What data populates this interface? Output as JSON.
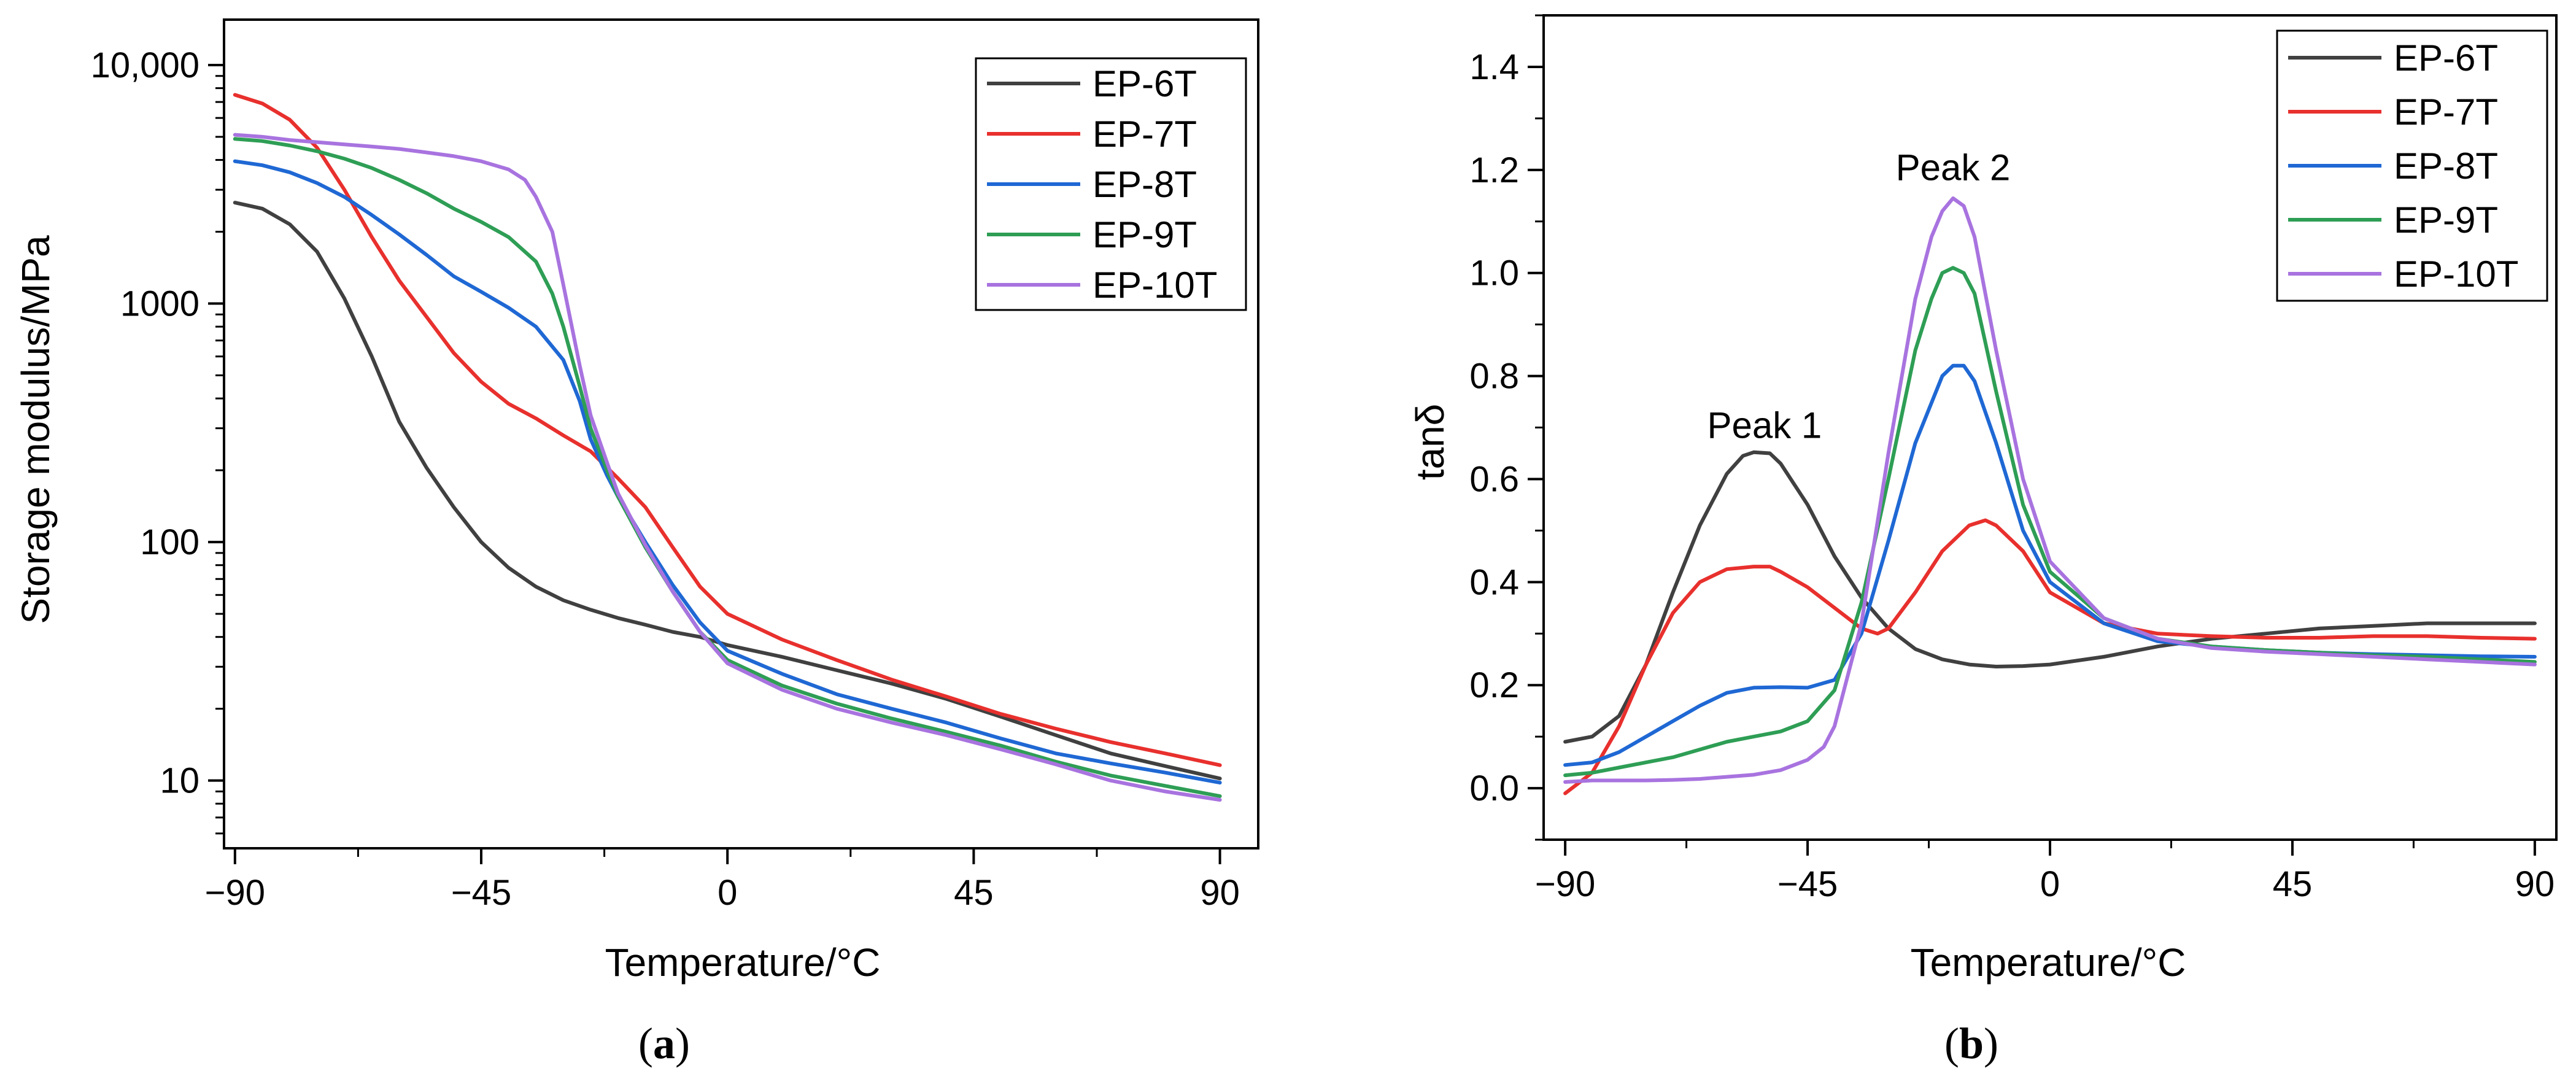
{
  "chart_data": [
    {
      "id": "a",
      "type": "line",
      "caption": "a",
      "xlabel": "Temperature/°C",
      "ylabel": "Storage modulus/MPa",
      "yscale": "log",
      "xlim": [
        -92,
        97
      ],
      "ylim": [
        5.2,
        15500
      ],
      "xticks": [
        -90,
        -45,
        0,
        45,
        90
      ],
      "xtick_labels": [
        "−90",
        "−45",
        "0",
        "45",
        "90"
      ],
      "yticks": [
        10,
        100,
        1000,
        10000
      ],
      "ytick_labels": [
        "10",
        "100",
        "1000",
        "10,000"
      ],
      "legend": "top-right",
      "series": [
        {
          "name": "EP-6T",
          "color": "#404040",
          "x": [
            -90,
            -85,
            -80,
            -75,
            -70,
            -65,
            -60,
            -55,
            -50,
            -45,
            -40,
            -35,
            -30,
            -25,
            -20,
            -15,
            -10,
            -5,
            0,
            10,
            20,
            30,
            40,
            50,
            60,
            70,
            80,
            90
          ],
          "y": [
            2650,
            2500,
            2150,
            1650,
            1050,
            600,
            320,
            205,
            140,
            100,
            78,
            65,
            57,
            52,
            48,
            45,
            42,
            40,
            37,
            33,
            29,
            25.5,
            22,
            18.5,
            15.5,
            13,
            11.5,
            10.2
          ]
        },
        {
          "name": "EP-7T",
          "color": "#e8302d",
          "x": [
            -90,
            -85,
            -80,
            -75,
            -70,
            -65,
            -60,
            -55,
            -50,
            -45,
            -40,
            -35,
            -30,
            -25,
            -20,
            -15,
            -10,
            -5,
            0,
            10,
            20,
            30,
            40,
            50,
            60,
            70,
            80,
            90
          ],
          "y": [
            7500,
            6900,
            5900,
            4500,
            3000,
            1900,
            1250,
            880,
            620,
            470,
            380,
            330,
            280,
            240,
            185,
            140,
            95,
            65,
            50,
            39,
            32,
            26.5,
            22.5,
            19,
            16.5,
            14.5,
            13,
            11.6
          ]
        },
        {
          "name": "EP-8T",
          "color": "#1f68d4",
          "x": [
            -90,
            -85,
            -80,
            -75,
            -70,
            -65,
            -60,
            -55,
            -50,
            -45,
            -40,
            -35,
            -30,
            -27,
            -25,
            -22,
            -20,
            -15,
            -10,
            -5,
            0,
            10,
            20,
            30,
            40,
            50,
            60,
            70,
            80,
            90
          ],
          "y": [
            3950,
            3800,
            3550,
            3200,
            2800,
            2350,
            1950,
            1600,
            1300,
            1120,
            960,
            800,
            580,
            390,
            270,
            190,
            155,
            100,
            66,
            46,
            35,
            28,
            23,
            20,
            17.5,
            15,
            13,
            11.8,
            10.8,
            9.8
          ]
        },
        {
          "name": "EP-9T",
          "color": "#2e9e55",
          "x": [
            -90,
            -85,
            -80,
            -75,
            -70,
            -65,
            -60,
            -55,
            -50,
            -45,
            -40,
            -35,
            -32,
            -30,
            -27,
            -25,
            -22,
            -20,
            -15,
            -10,
            -5,
            0,
            10,
            20,
            30,
            40,
            50,
            60,
            70,
            80,
            90
          ],
          "y": [
            4900,
            4800,
            4600,
            4350,
            4050,
            3700,
            3300,
            2900,
            2500,
            2200,
            1900,
            1500,
            1100,
            800,
            450,
            300,
            200,
            155,
            95,
            62,
            42,
            32,
            25,
            21,
            18.2,
            16,
            14,
            12,
            10.5,
            9.5,
            8.6
          ]
        },
        {
          "name": "EP-10T",
          "color": "#a873df",
          "x": [
            -90,
            -85,
            -80,
            -75,
            -70,
            -65,
            -60,
            -55,
            -50,
            -45,
            -40,
            -37,
            -35,
            -32,
            -30,
            -27,
            -25,
            -22,
            -20,
            -15,
            -10,
            -5,
            0,
            10,
            20,
            30,
            40,
            50,
            60,
            70,
            80,
            90
          ],
          "y": [
            5100,
            5000,
            4850,
            4750,
            4650,
            4550,
            4450,
            4300,
            4150,
            3950,
            3650,
            3300,
            2800,
            2000,
            1200,
            550,
            340,
            215,
            160,
            97,
            62,
            42,
            31,
            24,
            20,
            17.5,
            15.5,
            13.5,
            11.7,
            10,
            9,
            8.3
          ]
        }
      ]
    },
    {
      "id": "b",
      "type": "line",
      "caption": "b",
      "xlabel": "Temperature/°C",
      "ylabel": "tanδ",
      "yscale": "linear",
      "xlim": [
        -94,
        94
      ],
      "ylim": [
        -0.1,
        1.5
      ],
      "xticks": [
        -90,
        -45,
        0,
        45,
        90
      ],
      "xtick_labels": [
        "−90",
        "−45",
        "0",
        "45",
        "90"
      ],
      "yticks": [
        0.0,
        0.2,
        0.4,
        0.6,
        0.8,
        1.0,
        1.2,
        1.4
      ],
      "ytick_labels": [
        "0.0",
        "0.2",
        "0.4",
        "0.6",
        "0.8",
        "1.0",
        "1.2",
        "1.4"
      ],
      "legend": "top-right",
      "annotations": [
        {
          "text": "Peak 1",
          "x": -53,
          "y": 0.68
        },
        {
          "text": "Peak 2",
          "x": -18,
          "y": 1.18
        }
      ],
      "series": [
        {
          "name": "EP-6T",
          "color": "#404040",
          "x": [
            -90,
            -85,
            -80,
            -75,
            -70,
            -65,
            -60,
            -57,
            -55,
            -52,
            -50,
            -45,
            -40,
            -35,
            -30,
            -25,
            -20,
            -15,
            -10,
            -5,
            0,
            10,
            20,
            30,
            40,
            50,
            60,
            70,
            80,
            90
          ],
          "y": [
            0.09,
            0.1,
            0.14,
            0.24,
            0.38,
            0.51,
            0.61,
            0.645,
            0.652,
            0.65,
            0.63,
            0.55,
            0.45,
            0.37,
            0.31,
            0.27,
            0.25,
            0.24,
            0.236,
            0.237,
            0.24,
            0.255,
            0.275,
            0.29,
            0.3,
            0.31,
            0.315,
            0.32,
            0.32,
            0.32
          ]
        },
        {
          "name": "EP-7T",
          "color": "#e8302d",
          "x": [
            -90,
            -85,
            -80,
            -75,
            -70,
            -65,
            -60,
            -55,
            -52,
            -50,
            -45,
            -40,
            -35,
            -32,
            -30,
            -25,
            -20,
            -15,
            -12,
            -10,
            -5,
            0,
            10,
            20,
            30,
            40,
            50,
            60,
            70,
            80,
            90
          ],
          "y": [
            -0.01,
            0.03,
            0.12,
            0.24,
            0.34,
            0.4,
            0.425,
            0.43,
            0.43,
            0.42,
            0.39,
            0.35,
            0.31,
            0.3,
            0.31,
            0.38,
            0.46,
            0.51,
            0.52,
            0.51,
            0.46,
            0.38,
            0.32,
            0.3,
            0.295,
            0.292,
            0.292,
            0.295,
            0.295,
            0.292,
            0.29
          ]
        },
        {
          "name": "EP-8T",
          "color": "#1f68d4",
          "x": [
            -90,
            -85,
            -80,
            -75,
            -70,
            -65,
            -60,
            -55,
            -50,
            -45,
            -40,
            -35,
            -30,
            -25,
            -20,
            -18,
            -16,
            -14,
            -10,
            -5,
            0,
            10,
            20,
            30,
            40,
            50,
            60,
            70,
            80,
            90
          ],
          "y": [
            0.045,
            0.05,
            0.07,
            0.1,
            0.13,
            0.16,
            0.185,
            0.195,
            0.196,
            0.195,
            0.21,
            0.3,
            0.48,
            0.67,
            0.8,
            0.82,
            0.82,
            0.79,
            0.67,
            0.5,
            0.4,
            0.32,
            0.285,
            0.275,
            0.268,
            0.263,
            0.26,
            0.258,
            0.256,
            0.255
          ]
        },
        {
          "name": "EP-9T",
          "color": "#2e9e55",
          "x": [
            -90,
            -85,
            -80,
            -75,
            -70,
            -65,
            -60,
            -55,
            -50,
            -45,
            -40,
            -35,
            -30,
            -25,
            -22,
            -20,
            -18,
            -16,
            -14,
            -10,
            -5,
            0,
            10,
            20,
            30,
            40,
            50,
            60,
            70,
            80,
            90
          ],
          "y": [
            0.025,
            0.03,
            0.04,
            0.05,
            0.06,
            0.075,
            0.09,
            0.1,
            0.11,
            0.13,
            0.19,
            0.36,
            0.6,
            0.85,
            0.95,
            1.0,
            1.01,
            1.0,
            0.96,
            0.77,
            0.55,
            0.42,
            0.33,
            0.29,
            0.275,
            0.268,
            0.263,
            0.258,
            0.255,
            0.25,
            0.245
          ]
        },
        {
          "name": "EP-10T",
          "color": "#a873df",
          "x": [
            -90,
            -85,
            -80,
            -75,
            -70,
            -65,
            -60,
            -55,
            -50,
            -45,
            -42,
            -40,
            -35,
            -30,
            -25,
            -22,
            -20,
            -18,
            -16,
            -14,
            -10,
            -5,
            0,
            10,
            20,
            30,
            40,
            50,
            60,
            70,
            80,
            90
          ],
          "y": [
            0.012,
            0.015,
            0.015,
            0.015,
            0.016,
            0.018,
            0.022,
            0.026,
            0.035,
            0.055,
            0.08,
            0.12,
            0.32,
            0.65,
            0.95,
            1.07,
            1.12,
            1.145,
            1.13,
            1.07,
            0.85,
            0.6,
            0.44,
            0.33,
            0.29,
            0.272,
            0.265,
            0.26,
            0.255,
            0.25,
            0.245,
            0.24
          ]
        }
      ]
    }
  ]
}
